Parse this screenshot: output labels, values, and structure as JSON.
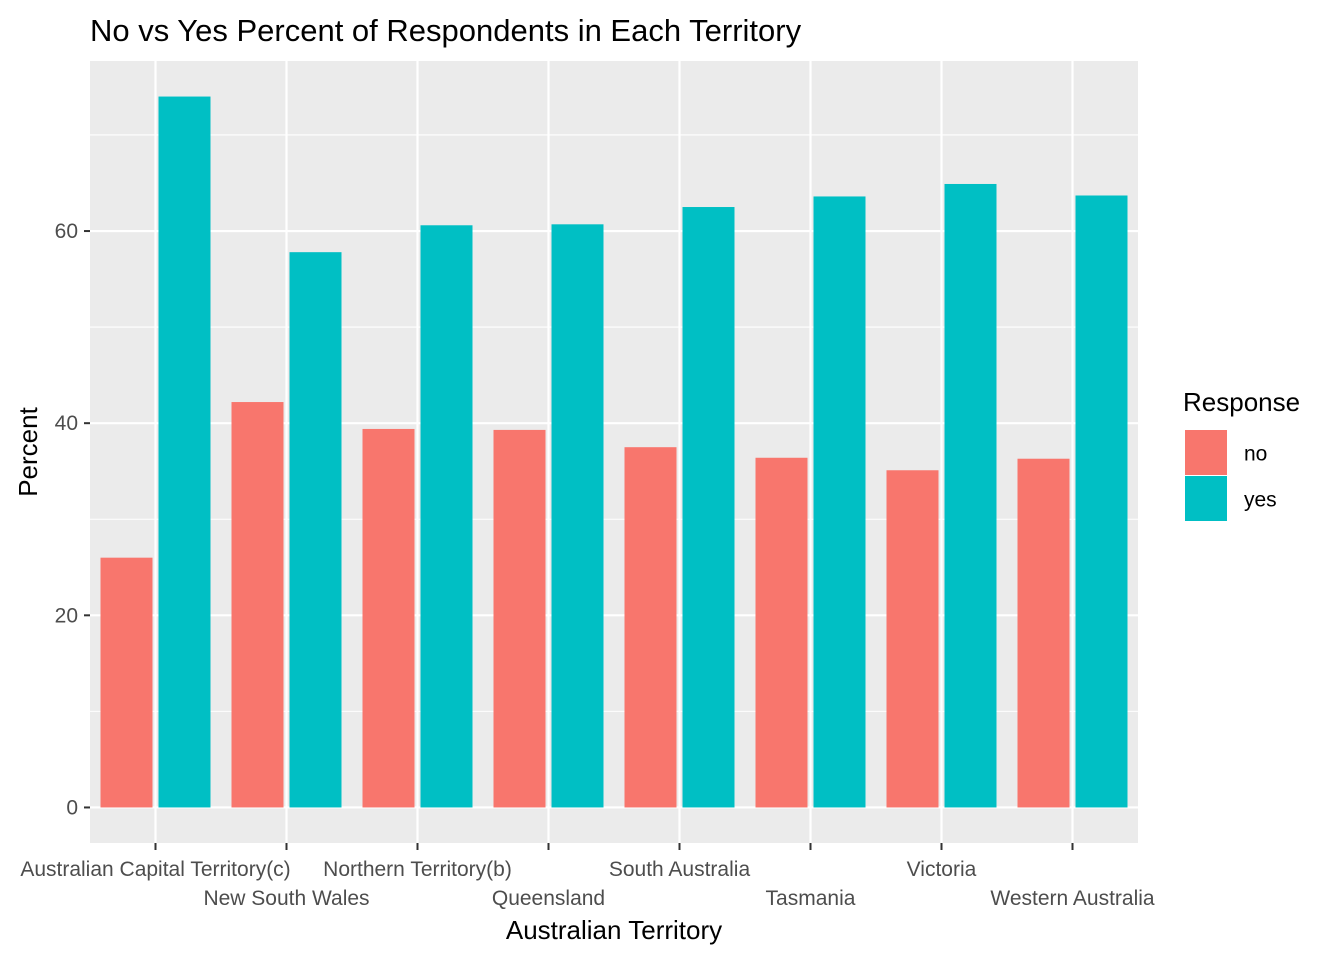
{
  "chart_data": {
    "type": "bar",
    "title": "No vs Yes Percent of Respondents in Each Territory",
    "xlabel": "Australian Territory",
    "ylabel": "Percent",
    "categories": [
      "Australian Capital Territory(c)",
      "New South Wales",
      "Northern Territory(b)",
      "Queensland",
      "South Australia",
      "Tasmania",
      "Victoria",
      "Western Australia"
    ],
    "series": [
      {
        "name": "no",
        "color": "#F8766D",
        "values": [
          26.0,
          42.2,
          39.4,
          39.3,
          37.5,
          36.4,
          35.1,
          36.3
        ]
      },
      {
        "name": "yes",
        "color": "#00BFC4",
        "values": [
          74.0,
          57.8,
          60.6,
          60.7,
          62.5,
          63.6,
          64.9,
          63.7
        ]
      }
    ],
    "ylim": [
      -3.7,
      77.7
    ],
    "yticks": [
      0,
      20,
      40,
      60
    ],
    "grid": true,
    "legend": {
      "title": "Response",
      "position": "right"
    },
    "panel_background": "#EBEBEB"
  }
}
